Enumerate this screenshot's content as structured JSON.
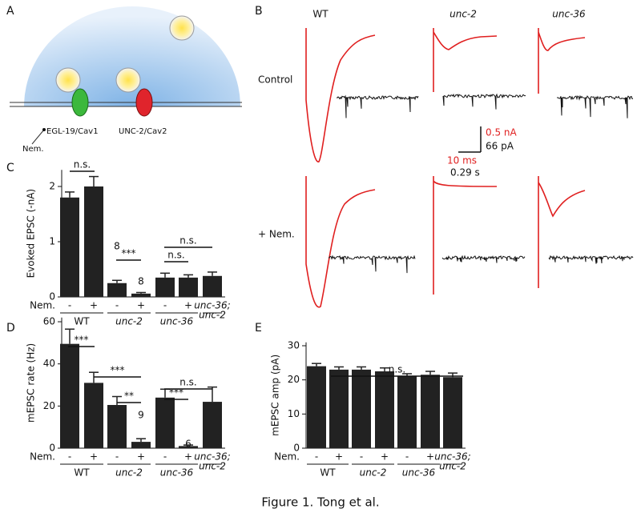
{
  "panel_a": {
    "label": "A",
    "channel_1": "EGL-19/Cav1",
    "channel_2": "UNC-2/Cav2",
    "drug": "Nem."
  },
  "panel_b": {
    "label": "B",
    "columns": [
      "WT",
      "unc-2",
      "unc-36"
    ],
    "rows": [
      "Control",
      "+ Nem."
    ],
    "scale_labels": [
      "0.5 nA",
      "66 pA",
      "10 ms",
      "0.29 s"
    ]
  },
  "chart_data": [
    {
      "type": "bar",
      "panel_label": "C",
      "ylabel": "Evoked EPSC (-nA)",
      "row_label": "Nem.",
      "categories": [
        "-",
        "+",
        "-",
        "+",
        "-",
        "+",
        null
      ],
      "groups": [
        [
          "WT"
        ],
        [
          "unc-2"
        ],
        [
          "unc-36"
        ],
        [
          "unc-36;",
          "unc-2"
        ]
      ],
      "values": [
        1.8,
        2.0,
        0.25,
        0.06,
        0.35,
        0.35,
        0.38
      ],
      "errors": [
        0.1,
        0.18,
        0.05,
        0.02,
        0.08,
        0.05,
        0.07
      ],
      "n_labels": [
        null,
        null,
        "8",
        "8",
        null,
        null,
        null
      ],
      "annotations": [
        "n.s.",
        "***",
        "n.s.",
        "n.s."
      ],
      "color": "#222222",
      "ylim": [
        0,
        2.3
      ],
      "yticks": [
        0,
        1,
        2
      ]
    },
    {
      "type": "bar",
      "panel_label": "D",
      "ylabel": "mEPSC rate (Hz)",
      "row_label": "Nem.",
      "categories": [
        "-",
        "+",
        "-",
        "+",
        "-",
        "+",
        null
      ],
      "groups": [
        [
          "WT"
        ],
        [
          "unc-2"
        ],
        [
          "unc-36"
        ],
        [
          "unc-36;",
          "unc-2"
        ]
      ],
      "values": [
        49.5,
        31,
        20.5,
        3,
        24,
        1,
        22
      ],
      "errors": [
        7,
        5,
        4,
        1.5,
        4,
        0.5,
        7
      ],
      "n_labels": [
        null,
        null,
        null,
        "9",
        null,
        "6",
        null
      ],
      "annotations": [
        "***",
        "***",
        "**",
        "n.s.",
        "***"
      ],
      "color": "#222222",
      "ylim": [
        0,
        62
      ],
      "yticks": [
        0,
        20,
        40,
        60
      ]
    },
    {
      "type": "bar",
      "panel_label": "E",
      "ylabel": "mEPSC amp (pA)",
      "row_label": "Nem.",
      "categories": [
        "-",
        "+",
        "-",
        "+",
        "-",
        "+",
        null
      ],
      "groups": [
        [
          "WT"
        ],
        [
          "unc-2"
        ],
        [
          "unc-36"
        ],
        [
          "unc-36;",
          "unc-2"
        ]
      ],
      "values": [
        24,
        23,
        23,
        22.5,
        21,
        21.5,
        20.8
      ],
      "errors": [
        0.8,
        0.8,
        0.8,
        1,
        0.8,
        1,
        1.2
      ],
      "n_labels": [
        null,
        null,
        null,
        null,
        null,
        null,
        null
      ],
      "annotations": [
        "n.s."
      ],
      "color": "#222222",
      "ylim": [
        0,
        31
      ],
      "yticks": [
        0,
        10,
        20,
        30
      ]
    }
  ],
  "caption": "Figure 1. Tong et al."
}
